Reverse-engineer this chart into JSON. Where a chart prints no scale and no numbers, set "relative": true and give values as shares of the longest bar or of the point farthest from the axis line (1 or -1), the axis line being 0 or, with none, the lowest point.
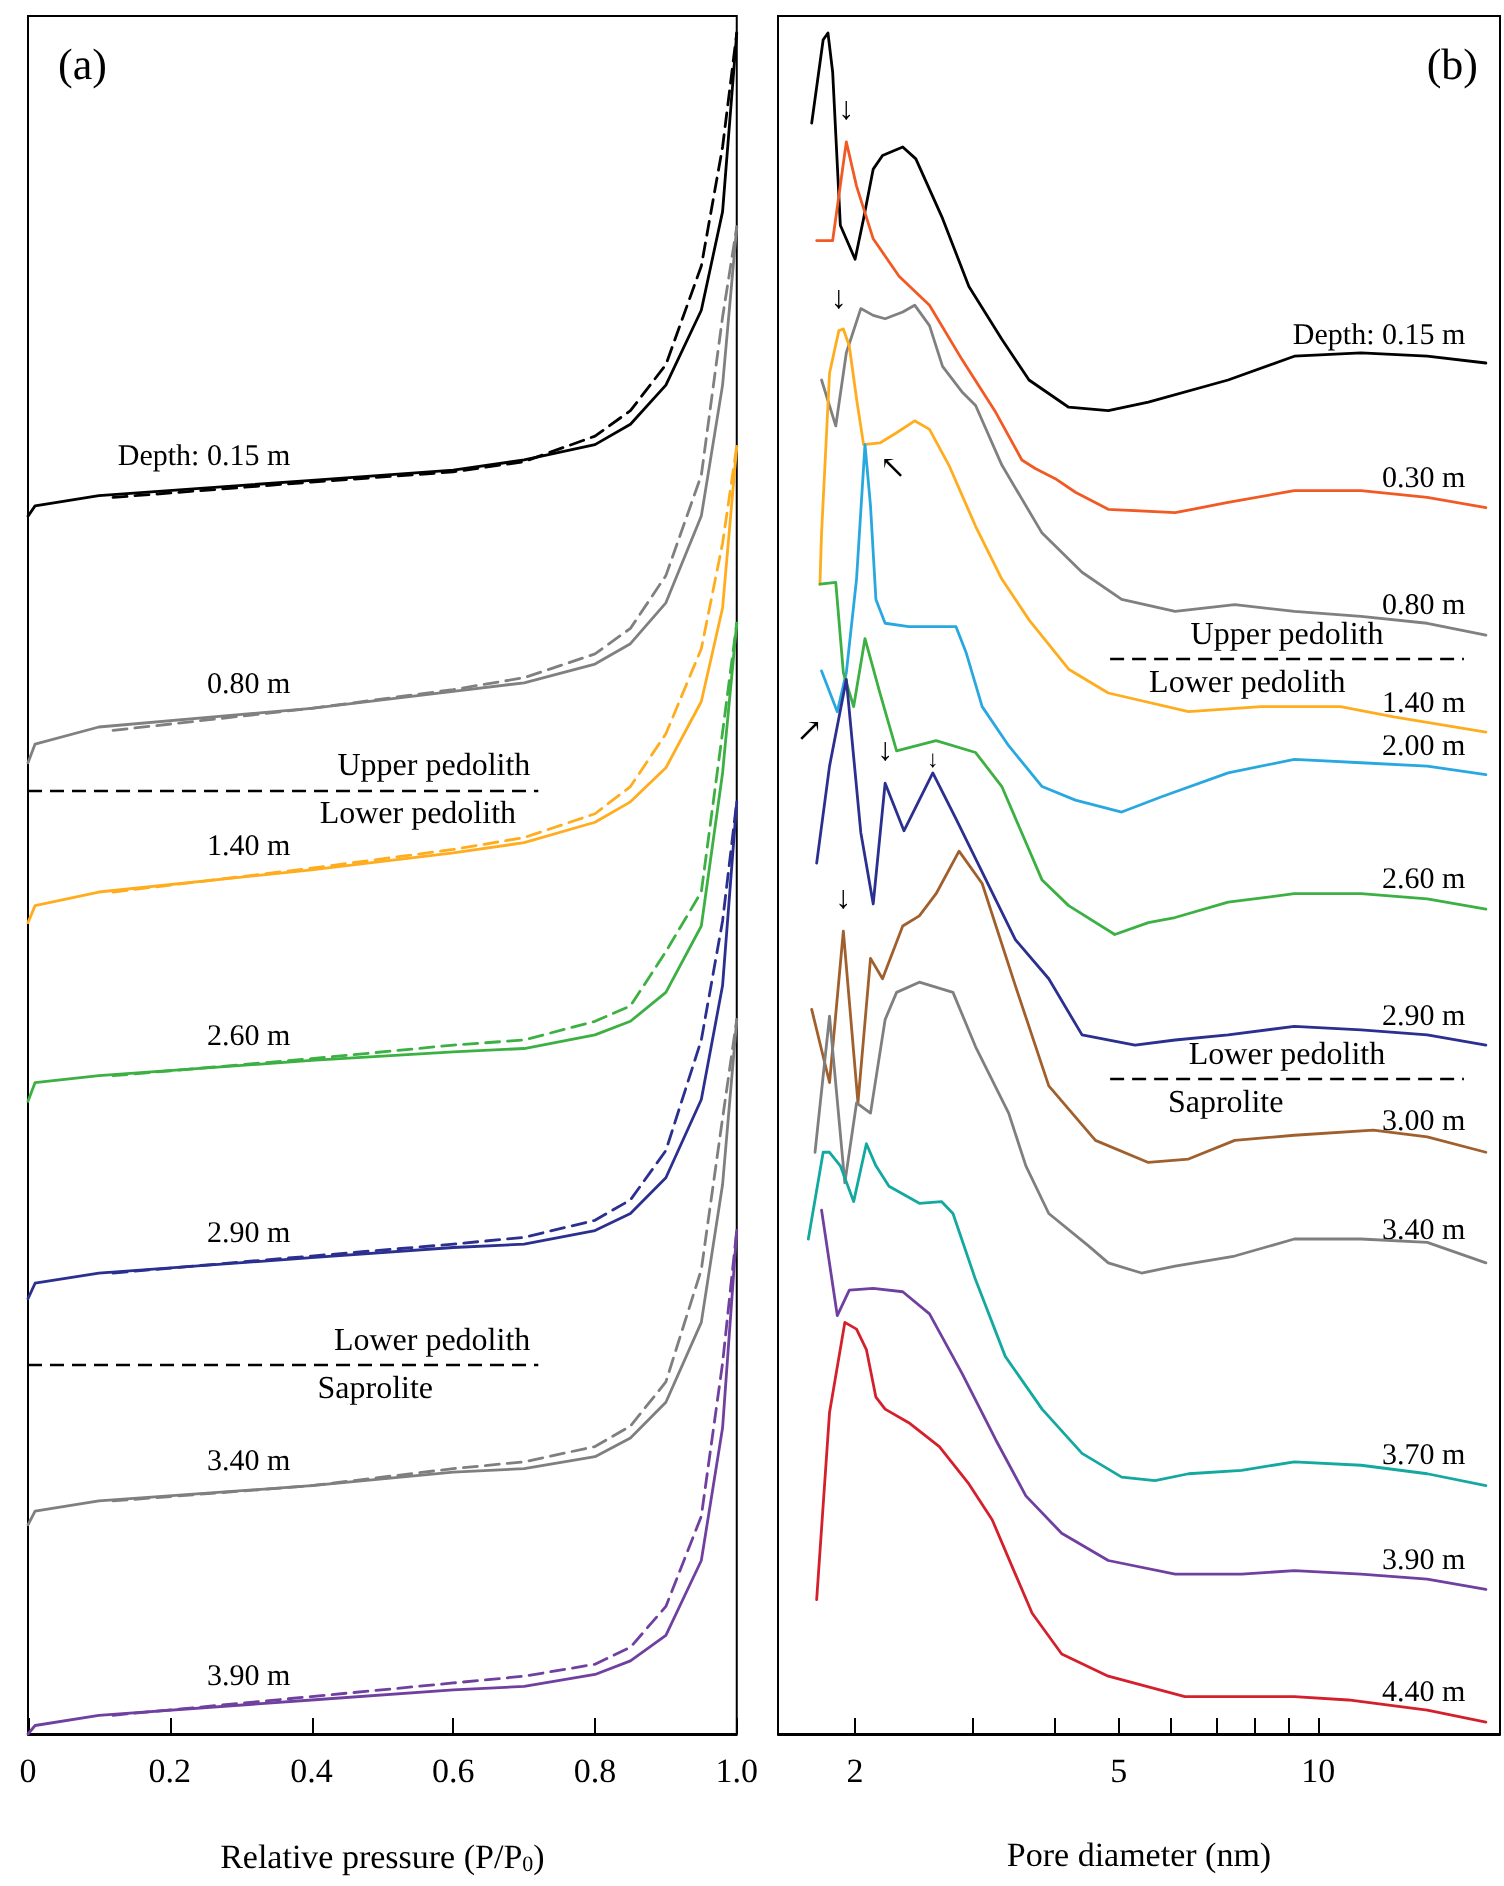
{
  "chart_data": [
    {
      "type": "line",
      "title": "(a)",
      "xlabel": "Relative pressure (P/P$_{0}$)",
      "relative": true,
      "marker": "none",
      "xlim": [
        0,
        1
      ],
      "xticks": [
        0,
        0.2,
        0.4,
        0.6,
        0.8,
        {
          "value": 1,
          "label": "1.0"
        }
      ],
      "series": [
        {
          "name": "Depth: 0.15 m",
          "color": "#000000",
          "x": [
            0,
            0.01,
            0.1,
            0.4,
            0.6,
            0.7,
            0.8,
            0.85,
            0.9,
            0.95,
            0.98,
            1
          ],
          "values": [
            0.716,
            0.722,
            0.728,
            0.737,
            0.743,
            0.749,
            0.758,
            0.77,
            0.793,
            0.837,
            0.895,
            1
          ]
        },
        {
          "color": "#000000",
          "line_style": "dashed",
          "x": [
            0.12,
            0.4,
            0.6,
            0.7,
            0.8,
            0.85,
            0.9,
            0.95,
            0.98,
            1
          ],
          "values": [
            0.727,
            0.736,
            0.742,
            0.748,
            0.763,
            0.778,
            0.805,
            0.863,
            0.933,
            1
          ]
        },
        {
          "name": "0.80 m",
          "color": "#808080",
          "x": [
            0,
            0.01,
            0.1,
            0.4,
            0.6,
            0.7,
            0.8,
            0.85,
            0.9,
            0.95,
            0.98,
            1
          ],
          "values": [
            0.571,
            0.582,
            0.592,
            0.603,
            0.613,
            0.618,
            0.629,
            0.641,
            0.665,
            0.716,
            0.793,
            0.886
          ]
        },
        {
          "color": "#808080",
          "line_style": "dashed",
          "x": [
            0.12,
            0.4,
            0.6,
            0.7,
            0.8,
            0.85,
            0.9,
            0.95,
            0.98,
            1
          ],
          "values": [
            0.59,
            0.603,
            0.614,
            0.621,
            0.635,
            0.65,
            0.681,
            0.74,
            0.833,
            0.886
          ]
        },
        {
          "name": "1.40 m",
          "color": "#ffad1f",
          "x": [
            0,
            0.01,
            0.1,
            0.4,
            0.6,
            0.7,
            0.8,
            0.85,
            0.9,
            0.95,
            0.98,
            1
          ],
          "values": [
            0.477,
            0.487,
            0.495,
            0.508,
            0.518,
            0.524,
            0.536,
            0.548,
            0.568,
            0.607,
            0.662,
            0.757
          ]
        },
        {
          "color": "#ffad1f",
          "line_style": "dashed",
          "x": [
            0.12,
            0.4,
            0.6,
            0.7,
            0.8,
            0.85,
            0.9,
            0.95,
            0.98,
            1
          ],
          "values": [
            0.495,
            0.509,
            0.52,
            0.527,
            0.541,
            0.557,
            0.588,
            0.638,
            0.7,
            0.757
          ]
        },
        {
          "name": "2.60 m",
          "color": "#3cb043",
          "x": [
            0,
            0.01,
            0.1,
            0.4,
            0.6,
            0.7,
            0.8,
            0.85,
            0.9,
            0.95,
            0.98,
            1
          ],
          "values": [
            0.372,
            0.383,
            0.387,
            0.396,
            0.401,
            0.403,
            0.411,
            0.419,
            0.436,
            0.475,
            0.565,
            0.653
          ]
        },
        {
          "color": "#3cb043",
          "line_style": "dashed",
          "x": [
            0.12,
            0.4,
            0.6,
            0.7,
            0.8,
            0.85,
            0.9,
            0.95,
            0.98,
            1
          ],
          "values": [
            0.387,
            0.397,
            0.405,
            0.408,
            0.419,
            0.428,
            0.46,
            0.495,
            0.589,
            0.653
          ]
        },
        {
          "name": "2.90 m",
          "color": "#2b2f8f",
          "x": [
            0,
            0.01,
            0.1,
            0.4,
            0.6,
            0.7,
            0.8,
            0.85,
            0.9,
            0.95,
            0.98,
            1
          ],
          "values": [
            0.256,
            0.265,
            0.271,
            0.28,
            0.286,
            0.288,
            0.296,
            0.306,
            0.327,
            0.373,
            0.44,
            0.548
          ]
        },
        {
          "color": "#2b2f8f",
          "line_style": "dashed",
          "x": [
            0.12,
            0.4,
            0.6,
            0.7,
            0.8,
            0.85,
            0.9,
            0.95,
            0.98,
            1
          ],
          "values": [
            0.271,
            0.281,
            0.288,
            0.292,
            0.302,
            0.314,
            0.343,
            0.408,
            0.478,
            0.548
          ]
        },
        {
          "name": "3.40 m",
          "color": "#7f7f7f",
          "x": [
            0,
            0.01,
            0.1,
            0.4,
            0.6,
            0.7,
            0.8,
            0.85,
            0.9,
            0.95,
            0.98,
            1
          ],
          "values": [
            0.123,
            0.131,
            0.137,
            0.146,
            0.154,
            0.156,
            0.163,
            0.174,
            0.195,
            0.242,
            0.323,
            0.42
          ]
        },
        {
          "color": "#7f7f7f",
          "line_style": "dashed",
          "x": [
            0.12,
            0.4,
            0.6,
            0.7,
            0.8,
            0.85,
            0.9,
            0.95,
            0.98,
            1
          ],
          "values": [
            0.137,
            0.146,
            0.156,
            0.16,
            0.169,
            0.181,
            0.207,
            0.273,
            0.362,
            0.42
          ]
        },
        {
          "name": "3.90 m",
          "color": "#7040a0",
          "x": [
            0,
            0.01,
            0.1,
            0.4,
            0.6,
            0.7,
            0.8,
            0.85,
            0.9,
            0.95,
            0.98,
            1
          ],
          "values": [
            0,
            0.005,
            0.011,
            0.02,
            0.026,
            0.028,
            0.035,
            0.043,
            0.058,
            0.102,
            0.18,
            0.296
          ]
        },
        {
          "color": "#7040a0",
          "line_style": "dashed",
          "x": [
            0.12,
            0.4,
            0.6,
            0.7,
            0.8,
            0.85,
            0.9,
            0.95,
            0.98,
            1
          ],
          "values": [
            0.011,
            0.022,
            0.03,
            0.034,
            0.041,
            0.051,
            0.075,
            0.128,
            0.218,
            0.296
          ]
        }
      ],
      "ref_lines": [
        {
          "axis": "y",
          "value": 0.555,
          "label": "Upper pedolith",
          "color": "#000000",
          "line_style": "dashed"
        },
        {
          "axis": "y",
          "value": 0.217,
          "label": "Lower pedolith",
          "color": "#000000",
          "line_style": "dashed"
        }
      ],
      "annotations": [
        "Lower pedolith",
        "Saprolite"
      ]
    },
    {
      "type": "line",
      "title": "(b)",
      "xlabel": "Pore diameter (nm)",
      "relative": true,
      "marker": "none",
      "log": "x",
      "xlim": [
        1.53,
        18.8
      ],
      "xticks": [
        2,
        {
          "value": 3,
          "label": null
        },
        {
          "value": 4,
          "label": null
        },
        5,
        {
          "value": 6,
          "label": null
        },
        {
          "value": 7,
          "label": null
        },
        {
          "value": 8,
          "label": null
        },
        {
          "value": 9,
          "label": null
        },
        10
      ],
      "series": [
        {
          "name": "Depth: 0.15 m",
          "color": "#000000",
          "x": [
            1.72,
            1.79,
            1.82,
            1.85,
            1.9,
            2.0,
            2.06,
            2.13,
            2.2,
            2.36,
            2.47,
            2.71,
            2.97,
            3.33,
            3.66,
            4.2,
            4.82,
            5.54,
            7.31,
            9.2,
            11.6,
            14.6,
            17.9
          ],
          "values": [
            0.947,
            0.996,
            1,
            0.977,
            0.887,
            0.867,
            0.891,
            0.92,
            0.928,
            0.933,
            0.926,
            0.891,
            0.851,
            0.82,
            0.796,
            0.78,
            0.778,
            0.783,
            0.796,
            0.81,
            0.812,
            0.81,
            0.806
          ]
        },
        {
          "name": "0.30 m",
          "color": "#f15a24",
          "x": [
            1.75,
            1.85,
            1.94,
            2.01,
            2.13,
            2.33,
            2.59,
            2.9,
            3.26,
            3.57,
            3.74,
            4.01,
            4.3,
            4.82,
            6.08,
            7.31,
            9.2,
            11.6,
            14.6,
            17.9
          ],
          "values": [
            0.878,
            0.878,
            0.936,
            0.91,
            0.879,
            0.857,
            0.84,
            0.808,
            0.777,
            0.749,
            0.744,
            0.738,
            0.73,
            0.72,
            0.718,
            0.724,
            0.731,
            0.731,
            0.727,
            0.721
          ]
        },
        {
          "name": "0.80 m",
          "color": "#808080",
          "x": [
            1.78,
            1.87,
            1.94,
            2.04,
            2.13,
            2.22,
            2.36,
            2.46,
            2.59,
            2.71,
            2.9,
            3.04,
            3.33,
            3.83,
            4.4,
            5.05,
            6.08,
            7.48,
            9.2,
            11.6,
            14.6,
            17.9
          ],
          "values": [
            0.796,
            0.769,
            0.812,
            0.838,
            0.834,
            0.832,
            0.836,
            0.84,
            0.828,
            0.804,
            0.789,
            0.781,
            0.746,
            0.706,
            0.683,
            0.667,
            0.66,
            0.664,
            0.66,
            0.657,
            0.653,
            0.646
          ]
        },
        {
          "name": "1.40 m",
          "color": "#ffad1f",
          "x": [
            1.77,
            1.78,
            1.83,
            1.89,
            1.92,
            1.96,
            2.01,
            2.06,
            2.18,
            2.31,
            2.46,
            2.59,
            2.77,
            3.04,
            3.33,
            3.66,
            4.2,
            4.82,
            6.37,
            8.2,
            10.8,
            13.0,
            17.9
          ],
          "values": [
            0.676,
            0.706,
            0.8,
            0.825,
            0.826,
            0.816,
            0.785,
            0.758,
            0.759,
            0.765,
            0.772,
            0.767,
            0.746,
            0.71,
            0.679,
            0.655,
            0.626,
            0.612,
            0.601,
            0.604,
            0.604,
            0.598,
            0.589
          ]
        },
        {
          "name": "2.00 m",
          "color": "#29a8e0",
          "x": [
            1.78,
            1.88,
            1.94,
            2.01,
            2.07,
            2.11,
            2.15,
            2.22,
            2.41,
            2.84,
            2.94,
            3.11,
            3.41,
            3.83,
            4.3,
            5.05,
            5.8,
            7.31,
            9.2,
            11.6,
            14.6,
            17.9
          ],
          "values": [
            0.625,
            0.601,
            0.624,
            0.679,
            0.758,
            0.722,
            0.667,
            0.653,
            0.651,
            0.651,
            0.636,
            0.604,
            0.581,
            0.557,
            0.549,
            0.542,
            0.551,
            0.565,
            0.573,
            0.571,
            0.569,
            0.564
          ]
        },
        {
          "name": "2.60 m",
          "color": "#3cb043",
          "x": [
            1.77,
            1.87,
            1.92,
            1.99,
            2.07,
            2.18,
            2.31,
            2.65,
            3.04,
            3.33,
            3.83,
            4.2,
            4.93,
            5.54,
            6.08,
            7.31,
            9.2,
            11.6,
            14.6,
            17.9
          ],
          "values": [
            0.676,
            0.677,
            0.624,
            0.604,
            0.644,
            0.612,
            0.578,
            0.584,
            0.577,
            0.557,
            0.502,
            0.487,
            0.47,
            0.477,
            0.48,
            0.489,
            0.494,
            0.494,
            0.491,
            0.485
          ]
        },
        {
          "name": "2.90 m",
          "color": "#2b2f8f",
          "x": [
            1.75,
            1.83,
            1.94,
            2.04,
            2.13,
            2.22,
            2.37,
            2.62,
            2.84,
            3.18,
            3.49,
            3.92,
            4.4,
            5.29,
            6.08,
            7.31,
            9.2,
            11.6,
            14.6,
            17.9
          ],
          "values": [
            0.512,
            0.569,
            0.62,
            0.53,
            0.488,
            0.559,
            0.531,
            0.565,
            0.538,
            0.499,
            0.467,
            0.444,
            0.411,
            0.405,
            0.408,
            0.411,
            0.416,
            0.414,
            0.411,
            0.405
          ]
        },
        {
          "name": "3.00 m",
          "color": "#a0602e",
          "x": [
            1.72,
            1.83,
            1.92,
            2.02,
            2.11,
            2.2,
            2.36,
            2.5,
            2.65,
            2.87,
            3.11,
            3.49,
            3.92,
            4.61,
            5.54,
            6.37,
            7.48,
            9.2,
            12.1,
            14.6,
            17.9
          ],
          "values": [
            0.426,
            0.383,
            0.472,
            0.371,
            0.456,
            0.444,
            0.475,
            0.481,
            0.494,
            0.519,
            0.5,
            0.44,
            0.381,
            0.349,
            0.336,
            0.338,
            0.349,
            0.352,
            0.355,
            0.351,
            0.342
          ]
        },
        {
          "name": "3.40 m",
          "color": "#7f7f7f",
          "x": [
            1.74,
            1.83,
            1.93,
            2.01,
            2.11,
            2.22,
            2.31,
            2.5,
            2.81,
            3.04,
            3.41,
            3.62,
            3.92,
            4.5,
            4.82,
            5.41,
            6.08,
            7.48,
            9.2,
            11.6,
            14.6,
            17.9
          ],
          "values": [
            0.342,
            0.422,
            0.324,
            0.371,
            0.365,
            0.42,
            0.436,
            0.442,
            0.436,
            0.404,
            0.365,
            0.334,
            0.306,
            0.287,
            0.277,
            0.271,
            0.275,
            0.281,
            0.291,
            0.291,
            0.289,
            0.277
          ]
        },
        {
          "name": "3.70 m",
          "color": "#13a8a0",
          "x": [
            1.7,
            1.79,
            1.83,
            1.9,
            1.99,
            2.08,
            2.15,
            2.25,
            2.5,
            2.7,
            2.81,
            3.04,
            3.37,
            3.83,
            4.4,
            5.05,
            5.67,
            6.37,
            7.66,
            9.2,
            11.6,
            14.6,
            17.9
          ],
          "values": [
            0.291,
            0.342,
            0.342,
            0.334,
            0.313,
            0.347,
            0.334,
            0.322,
            0.312,
            0.313,
            0.306,
            0.267,
            0.222,
            0.191,
            0.165,
            0.151,
            0.149,
            0.153,
            0.155,
            0.16,
            0.158,
            0.153,
            0.146
          ]
        },
        {
          "name": "3.90 m",
          "color": "#7040a0",
          "x": [
            1.78,
            1.88,
            1.96,
            2.13,
            2.36,
            2.59,
            2.9,
            3.26,
            3.62,
            4.1,
            4.82,
            6.08,
            7.66,
            9.2,
            11.6,
            14.6,
            17.9
          ],
          "values": [
            0.308,
            0.246,
            0.261,
            0.262,
            0.26,
            0.247,
            0.212,
            0.173,
            0.14,
            0.118,
            0.102,
            0.094,
            0.094,
            0.096,
            0.094,
            0.091,
            0.085
          ]
        },
        {
          "name": "4.40 m",
          "color": "#d4202c",
          "x": [
            1.75,
            1.83,
            1.93,
            2.01,
            2.08,
            2.15,
            2.22,
            2.41,
            2.68,
            2.97,
            3.22,
            3.49,
            3.7,
            4.1,
            4.82,
            6.29,
            7.66,
            9.2,
            11.1,
            14.6,
            17.9
          ],
          "values": [
            0.079,
            0.189,
            0.242,
            0.238,
            0.226,
            0.198,
            0.191,
            0.183,
            0.169,
            0.147,
            0.126,
            0.094,
            0.071,
            0.047,
            0.034,
            0.022,
            0.022,
            0.022,
            0.02,
            0.014,
            0.007
          ]
        }
      ],
      "ref_lines": [
        {
          "axis": "y",
          "value": 0.632,
          "label": "Upper pedolith",
          "color": "#000000",
          "line_style": "dashed"
        },
        {
          "axis": "y",
          "value": 0.385,
          "label": "Lower pedolith",
          "color": "#000000",
          "line_style": "dashed"
        }
      ],
      "annotations": [
        "Lower pedolith",
        "Saprolite",
        {
          "text": "↓",
          "x": 1.94,
          "y": 0.936
        },
        {
          "text": "↓",
          "x": 1.89,
          "y": 0.825
        },
        {
          "text": "↖",
          "x": 2.07,
          "y": 0.758
        },
        {
          "text": "↗",
          "x": 1.88,
          "y": 0.601
        },
        {
          "text": "↓",
          "x": 2.22,
          "y": 0.559
        },
        {
          "text": "↓",
          "x": 2.62,
          "y": 0.565
        },
        {
          "text": "↓",
          "x": 1.92,
          "y": 0.472
        }
      ]
    }
  ]
}
